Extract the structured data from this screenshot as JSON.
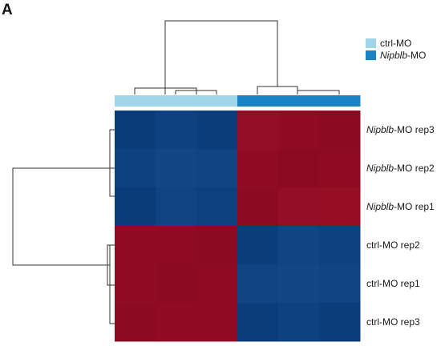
{
  "panel_label": "A",
  "chart_data": {
    "type": "heatmap",
    "rows": [
      {
        "gene": "Nipblb",
        "suffix": "-MO rep3"
      },
      {
        "gene": "Nipblb",
        "suffix": "-MO rep2"
      },
      {
        "gene": "Nipblb",
        "suffix": "-MO rep1"
      },
      {
        "gene": "",
        "suffix": "ctrl-MO rep2"
      },
      {
        "gene": "",
        "suffix": "ctrl-MO rep1"
      },
      {
        "gene": "",
        "suffix": "ctrl-MO rep3"
      }
    ],
    "column_groups": [
      "ctrl-MO",
      "ctrl-MO",
      "ctrl-MO",
      "Nipblb-MO",
      "Nipblb-MO",
      "Nipblb-MO"
    ],
    "values": [
      [
        -0.95,
        -0.8,
        -0.9,
        0.8,
        0.85,
        0.95
      ],
      [
        -0.8,
        -0.65,
        -0.7,
        0.85,
        1.0,
        0.9
      ],
      [
        -0.95,
        -0.75,
        -0.85,
        0.95,
        0.8,
        0.75
      ],
      [
        0.85,
        0.9,
        0.95,
        -0.9,
        -0.7,
        -0.8
      ],
      [
        0.85,
        0.95,
        0.9,
        -0.75,
        -0.65,
        -0.72
      ],
      [
        0.95,
        0.85,
        0.85,
        -0.92,
        -0.82,
        -0.93
      ]
    ],
    "color_scale": {
      "low": "#0a3a78",
      "mid": "#1f5fa3",
      "high": "#8b0a22"
    },
    "legend": {
      "placement": "top-right",
      "entries": [
        {
          "plain": "ctrl-MO",
          "italic": "",
          "rest": "",
          "color": "#9fd4ea"
        },
        {
          "plain": "",
          "italic": "Nipblb",
          "rest": "-MO",
          "color": "#1b82c4"
        }
      ]
    }
  }
}
